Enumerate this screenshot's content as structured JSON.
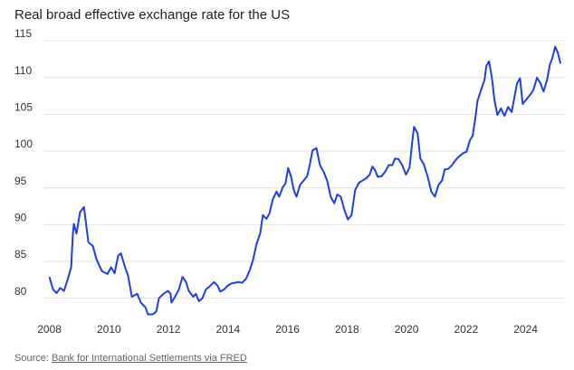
{
  "chart_data": {
    "type": "line",
    "title": "Real broad effective exchange rate for the US",
    "source_label": "Source:",
    "source": "Bank for International Settlements via FRED",
    "xlim": [
      2007.8,
      2025.35
    ],
    "xticks": [
      2008,
      2010,
      2012,
      2014,
      2016,
      2018,
      2020,
      2022,
      2024
    ],
    "ylim": [
      77.5,
      115.5
    ],
    "yticks": [
      80,
      85,
      90,
      95,
      100,
      105,
      110,
      115
    ],
    "grid": true,
    "x": [
      2008.0,
      2008.12,
      2008.24,
      2008.36,
      2008.49,
      2008.61,
      2008.73,
      2008.79,
      2008.82,
      2008.91,
      2009.03,
      2009.16,
      2009.31,
      2009.46,
      2009.58,
      2009.76,
      2009.95,
      2010.07,
      2010.19,
      2010.31,
      2010.4,
      2010.55,
      2010.64,
      2010.77,
      2010.86,
      2010.95,
      2011.07,
      2011.22,
      2011.31,
      2011.47,
      2011.59,
      2011.68,
      2011.83,
      2011.98,
      2012.07,
      2012.1,
      2012.22,
      2012.35,
      2012.47,
      2012.59,
      2012.68,
      2012.83,
      2012.92,
      2013.02,
      2013.14,
      2013.26,
      2013.38,
      2013.53,
      2013.65,
      2013.74,
      2013.87,
      2013.99,
      2014.11,
      2014.23,
      2014.35,
      2014.47,
      2014.6,
      2014.72,
      2014.84,
      2014.96,
      2015.08,
      2015.17,
      2015.29,
      2015.39,
      2015.51,
      2015.63,
      2015.72,
      2015.84,
      2015.93,
      2016.02,
      2016.12,
      2016.21,
      2016.3,
      2016.42,
      2016.54,
      2016.66,
      2016.75,
      2016.84,
      2016.97,
      2017.09,
      2017.21,
      2017.33,
      2017.45,
      2017.57,
      2017.67,
      2017.79,
      2017.91,
      2018.03,
      2018.15,
      2018.27,
      2018.4,
      2018.52,
      2018.64,
      2018.76,
      2018.85,
      2018.94,
      2019.03,
      2019.16,
      2019.28,
      2019.4,
      2019.52,
      2019.61,
      2019.73,
      2019.85,
      2019.98,
      2020.1,
      2020.19,
      2020.25,
      2020.37,
      2020.46,
      2020.58,
      2020.71,
      2020.83,
      2020.95,
      2021.07,
      2021.19,
      2021.28,
      2021.4,
      2021.53,
      2021.65,
      2021.77,
      2021.89,
      2022.01,
      2022.13,
      2022.22,
      2022.32,
      2022.38,
      2022.5,
      2022.62,
      2022.68,
      2022.77,
      2022.86,
      2022.95,
      2023.05,
      2023.17,
      2023.29,
      2023.41,
      2023.53,
      2023.62,
      2023.71,
      2023.81,
      2023.9,
      2024.02,
      2024.14,
      2024.26,
      2024.38,
      2024.5,
      2024.6,
      2024.72,
      2024.81,
      2024.9,
      2024.99,
      2025.08,
      2025.17
    ],
    "series": [
      {
        "color": "#1f3fe6",
        "values": [
          82.9,
          81.2,
          80.7,
          81.4,
          81.0,
          82.5,
          84.2,
          88.8,
          90.1,
          88.8,
          91.7,
          92.4,
          87.6,
          87.1,
          85.3,
          83.7,
          83.3,
          84.2,
          83.4,
          85.8,
          86.1,
          84.1,
          83.1,
          80.2,
          80.4,
          80.6,
          79.4,
          78.8,
          77.8,
          77.8,
          78.2,
          80.0,
          80.6,
          81.0,
          80.6,
          79.4,
          80.2,
          81.2,
          82.9,
          82.2,
          81.0,
          80.2,
          80.6,
          79.6,
          80.0,
          81.2,
          81.6,
          82.2,
          81.7,
          80.9,
          81.2,
          81.7,
          82.0,
          82.1,
          82.2,
          82.1,
          82.6,
          83.7,
          85.2,
          87.4,
          88.8,
          91.3,
          90.8,
          91.5,
          93.5,
          94.5,
          93.8,
          95.1,
          95.6,
          97.7,
          96.5,
          94.7,
          93.8,
          95.4,
          96.0,
          96.6,
          98.2,
          100.1,
          100.4,
          98.1,
          97.2,
          96.0,
          93.8,
          92.9,
          94.1,
          93.8,
          92.0,
          90.7,
          91.3,
          94.7,
          95.7,
          96.0,
          96.3,
          96.8,
          97.9,
          97.4,
          96.5,
          96.6,
          97.2,
          98.1,
          98.1,
          99.0,
          98.9,
          98.1,
          96.8,
          97.8,
          101.3,
          103.3,
          102.4,
          99.0,
          98.2,
          96.5,
          94.5,
          93.8,
          95.4,
          96.0,
          97.5,
          97.6,
          98.1,
          98.8,
          99.3,
          99.7,
          99.9,
          101.5,
          102.1,
          104.8,
          106.8,
          108.3,
          109.7,
          111.6,
          112.2,
          110.1,
          107.0,
          104.9,
          105.8,
          104.8,
          106.0,
          105.3,
          107.3,
          109.2,
          109.9,
          106.4,
          107.0,
          107.6,
          108.3,
          110.0,
          109.2,
          108.1,
          109.7,
          111.7,
          112.7,
          114.2,
          113.4,
          111.9
        ]
      }
    ]
  }
}
